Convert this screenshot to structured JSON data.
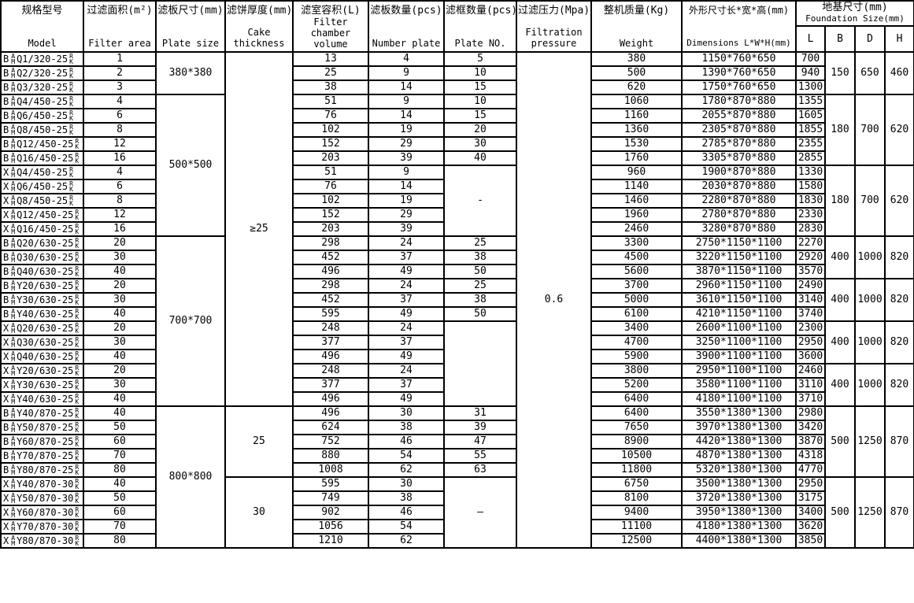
{
  "header": {
    "model": {
      "zh": "规格型号",
      "en": "Model"
    },
    "filter_area": {
      "zh": "过滤面积(m²)",
      "en": "Filter area"
    },
    "plate_size": {
      "zh": "滤板尺寸(mm)",
      "en": "Plate size"
    },
    "cake_thickness": {
      "zh": "滤饼厚度(mm)",
      "en": "Cake\nthickness"
    },
    "chamber_volume": {
      "zh": "滤室容积(L)",
      "en": "Filter chamber\nvolume"
    },
    "number_plate": {
      "zh": "滤板数量(pcs)",
      "en": "Number plate"
    },
    "plate_no": {
      "zh": "滤框数量(pcs)",
      "en": "Plate NO."
    },
    "pressure": {
      "zh": "过滤压力(Mpa)",
      "en": "Filtration\npressure"
    },
    "weight": {
      "zh": "整机质量(Kg)",
      "en": "Weight"
    },
    "dimensions": {
      "zh": "外形尺寸长*宽*高(mm)",
      "en": "Dimensions L*W*H(mm)"
    },
    "foundation": {
      "zh": "地基尺寸(mm)",
      "en": "Foundation Size(mm)",
      "sub": [
        "L",
        "B",
        "D",
        "H"
      ]
    }
  },
  "table": {
    "model_marks": {
      "t1": "A",
      "b1": "M",
      "t2": "R",
      "b2": "K"
    },
    "rows": [
      {
        "p": "B",
        "c": "Q1/320-25",
        "area": "1",
        "vol": "13",
        "np": "4",
        "wt": "380",
        "dim": "1150*760*650",
        "l": "700"
      },
      {
        "p": "B",
        "c": "Q2/320-25",
        "area": "2",
        "vol": "25",
        "np": "9",
        "wt": "500",
        "dim": "1390*760*650",
        "l": "940"
      },
      {
        "p": "B",
        "c": "Q3/320-25",
        "area": "3",
        "vol": "38",
        "np": "14",
        "wt": "620",
        "dim": "1750*760*650",
        "l": "1300"
      },
      {
        "p": "B",
        "c": "Q4/450-25",
        "area": "4",
        "vol": "51",
        "np": "9",
        "wt": "1060",
        "dim": "1780*870*880",
        "l": "1355"
      },
      {
        "p": "B",
        "c": "Q6/450-25",
        "area": "6",
        "vol": "76",
        "np": "14",
        "wt": "1160",
        "dim": "2055*870*880",
        "l": "1605"
      },
      {
        "p": "B",
        "c": "Q8/450-25",
        "area": "8",
        "vol": "102",
        "np": "19",
        "wt": "1360",
        "dim": "2305*870*880",
        "l": "1855"
      },
      {
        "p": "B",
        "c": "Q12/450-25",
        "area": "12",
        "vol": "152",
        "np": "29",
        "wt": "1530",
        "dim": "2785*870*880",
        "l": "2355"
      },
      {
        "p": "B",
        "c": "Q16/450-25",
        "area": "16",
        "vol": "203",
        "np": "39",
        "wt": "1760",
        "dim": "3305*870*880",
        "l": "2855"
      },
      {
        "p": "X",
        "c": "Q4/450-25",
        "area": "4",
        "vol": "51",
        "np": "9",
        "wt": "960",
        "dim": "1900*870*880",
        "l": "1330"
      },
      {
        "p": "X",
        "c": "Q6/450-25",
        "area": "6",
        "vol": "76",
        "np": "14",
        "wt": "1140",
        "dim": "2030*870*880",
        "l": "1580"
      },
      {
        "p": "X",
        "c": "Q8/450-25",
        "area": "8",
        "vol": "102",
        "np": "19",
        "wt": "1460",
        "dim": "2280*870*880",
        "l": "1830"
      },
      {
        "p": "X",
        "c": "Q12/450-25",
        "area": "12",
        "vol": "152",
        "np": "29",
        "wt": "1960",
        "dim": "2780*870*880",
        "l": "2330"
      },
      {
        "p": "X",
        "c": "Q16/450-25",
        "area": "16",
        "vol": "203",
        "np": "39",
        "wt": "2460",
        "dim": "3280*870*880",
        "l": "2830"
      },
      {
        "p": "B",
        "c": "Q20/630-25",
        "area": "20",
        "vol": "298",
        "np": "24",
        "wt": "3300",
        "dim": "2750*1150*1100",
        "l": "2270"
      },
      {
        "p": "B",
        "c": "Q30/630-25",
        "area": "30",
        "vol": "452",
        "np": "37",
        "wt": "4500",
        "dim": "3220*1150*1100",
        "l": "2920"
      },
      {
        "p": "B",
        "c": "Q40/630-25",
        "area": "40",
        "vol": "496",
        "np": "49",
        "wt": "5600",
        "dim": "3870*1150*1100",
        "l": "3570"
      },
      {
        "p": "B",
        "c": "Y20/630-25",
        "area": "20",
        "vol": "298",
        "np": "24",
        "wt": "3700",
        "dim": "2960*1150*1100",
        "l": "2490"
      },
      {
        "p": "B",
        "c": "Y30/630-25",
        "area": "30",
        "vol": "452",
        "np": "37",
        "wt": "5000",
        "dim": "3610*1150*1100",
        "l": "3140"
      },
      {
        "p": "B",
        "c": "Y40/630-25",
        "area": "40",
        "vol": "595",
        "np": "49",
        "wt": "6100",
        "dim": "4210*1150*1100",
        "l": "3740"
      },
      {
        "p": "X",
        "c": "Q20/630-25",
        "area": "20",
        "vol": "248",
        "np": "24",
        "wt": "3400",
        "dim": "2600*1100*1100",
        "l": "2300"
      },
      {
        "p": "X",
        "c": "Q30/630-25",
        "area": "30",
        "vol": "377",
        "np": "37",
        "wt": "4700",
        "dim": "3250*1100*1100",
        "l": "2950"
      },
      {
        "p": "X",
        "c": "Q40/630-25",
        "area": "40",
        "vol": "496",
        "np": "49",
        "wt": "5900",
        "dim": "3900*1100*1100",
        "l": "3600"
      },
      {
        "p": "X",
        "c": "Y20/630-25",
        "area": "20",
        "vol": "248",
        "np": "24",
        "wt": "3800",
        "dim": "2950*1100*1100",
        "l": "2460"
      },
      {
        "p": "X",
        "c": "Y30/630-25",
        "area": "30",
        "vol": "377",
        "np": "37",
        "wt": "5200",
        "dim": "3580*1100*1100",
        "l": "3110"
      },
      {
        "p": "X",
        "c": "Y40/630-25",
        "area": "40",
        "vol": "496",
        "np": "49",
        "wt": "6400",
        "dim": "4180*1100*1100",
        "l": "3710"
      },
      {
        "p": "B",
        "c": "Y40/870-25",
        "area": "40",
        "vol": "496",
        "np": "30",
        "wt": "6400",
        "dim": "3550*1380*1300",
        "l": "2980"
      },
      {
        "p": "B",
        "c": "Y50/870-25",
        "area": "50",
        "vol": "624",
        "np": "38",
        "wt": "7650",
        "dim": "3970*1380*1300",
        "l": "3420"
      },
      {
        "p": "B",
        "c": "Y60/870-25",
        "area": "60",
        "vol": "752",
        "np": "46",
        "wt": "8900",
        "dim": "4420*1380*1300",
        "l": "3870"
      },
      {
        "p": "B",
        "c": "Y70/870-25",
        "area": "70",
        "vol": "880",
        "np": "54",
        "wt": "10500",
        "dim": "4870*1380*1300",
        "l": "4318"
      },
      {
        "p": "B",
        "c": "Y80/870-25",
        "area": "80",
        "vol": "1008",
        "np": "62",
        "wt": "11800",
        "dim": "5320*1380*1300",
        "l": "4770"
      },
      {
        "p": "X",
        "c": "Y40/870-30",
        "area": "40",
        "vol": "595",
        "np": "30",
        "wt": "6750",
        "dim": "3500*1380*1300",
        "l": "2950"
      },
      {
        "p": "X",
        "c": "Y50/870-30",
        "area": "50",
        "vol": "749",
        "np": "38",
        "wt": "8100",
        "dim": "3720*1380*1300",
        "l": "3175"
      },
      {
        "p": "X",
        "c": "Y60/870-30",
        "area": "60",
        "vol": "902",
        "np": "46",
        "wt": "9400",
        "dim": "3950*1380*1300",
        "l": "3400"
      },
      {
        "p": "X",
        "c": "Y70/870-30",
        "area": "70",
        "vol": "1056",
        "np": "54",
        "wt": "11100",
        "dim": "4180*1380*1300",
        "l": "3620"
      },
      {
        "p": "X",
        "c": "Y80/870-30",
        "area": "80",
        "vol": "1210",
        "np": "62",
        "wt": "12500",
        "dim": "4400*1380*1300",
        "l": "3850"
      }
    ],
    "plate_size_cells": [
      {
        "v": "380*380",
        "span": 3
      },
      {
        "v": "500*500",
        "span": 10
      },
      {
        "v": "700*700",
        "span": 12
      },
      {
        "v": "800*800",
        "span": 10
      }
    ],
    "cake_thickness_cells": [
      {
        "v": "≥25",
        "span": 25
      },
      {
        "v": "25",
        "span": 5
      },
      {
        "v": "30",
        "span": 5
      }
    ],
    "plate_no_cells": [
      {
        "v": "5",
        "span": 1
      },
      {
        "v": "10",
        "span": 1
      },
      {
        "v": "15",
        "span": 1
      },
      {
        "v": "10",
        "span": 1
      },
      {
        "v": "15",
        "span": 1
      },
      {
        "v": "20",
        "span": 1
      },
      {
        "v": "30",
        "span": 1
      },
      {
        "v": "40",
        "span": 1
      },
      {
        "v": "-",
        "span": 5
      },
      {
        "v": "25",
        "span": 1
      },
      {
        "v": "38",
        "span": 1
      },
      {
        "v": "50",
        "span": 1
      },
      {
        "v": "25",
        "span": 1
      },
      {
        "v": "38",
        "span": 1
      },
      {
        "v": "50",
        "span": 1
      },
      {
        "v": "",
        "span": 6
      },
      {
        "v": "31",
        "span": 1
      },
      {
        "v": "39",
        "span": 1
      },
      {
        "v": "47",
        "span": 1
      },
      {
        "v": "55",
        "span": 1
      },
      {
        "v": "63",
        "span": 1
      },
      {
        "v": "—",
        "span": 5
      }
    ],
    "pressure_cells": [
      {
        "v": "0.6",
        "span": 35
      }
    ],
    "foundation_cells": [
      {
        "b": "150",
        "d": "650",
        "h": "460",
        "span": 3
      },
      {
        "b": "180",
        "d": "700",
        "h": "620",
        "span": 5
      },
      {
        "b": "180",
        "d": "700",
        "h": "620",
        "span": 5
      },
      {
        "b": "400",
        "d": "1000",
        "h": "820",
        "span": 3
      },
      {
        "b": "400",
        "d": "1000",
        "h": "820",
        "span": 3
      },
      {
        "b": "400",
        "d": "1000",
        "h": "820",
        "span": 3
      },
      {
        "b": "400",
        "d": "1000",
        "h": "820",
        "span": 3
      },
      {
        "b": "500",
        "d": "1250",
        "h": "870",
        "span": 5
      },
      {
        "b": "500",
        "d": "1250",
        "h": "870",
        "span": 5
      }
    ]
  },
  "colors": {
    "border": "#000000",
    "background": "#ffffff",
    "text": "#000000"
  }
}
